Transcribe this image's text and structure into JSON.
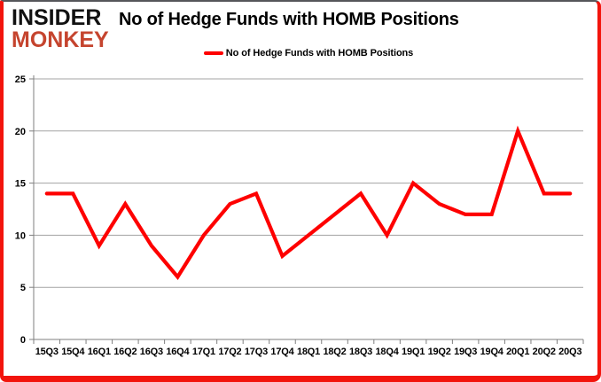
{
  "logo": {
    "line1": "INSIDER",
    "line2": "MONKEY"
  },
  "header": {
    "title": "No of Hedge Funds with HOMB Positions"
  },
  "legend": {
    "label": "No of Hedge Funds with HOMB Positions"
  },
  "colors": {
    "series_line": "#fe0000",
    "frame_red": "#f2140c",
    "logo_red": "#c5442e",
    "gridline": "#a3a3a3",
    "axis": "#7f7f7f",
    "text": "#000000"
  },
  "chart_data": {
    "type": "line",
    "title": "No of Hedge Funds with HOMB Positions",
    "categories": [
      "15Q3",
      "15Q4",
      "16Q1",
      "16Q2",
      "16Q3",
      "16Q4",
      "17Q1",
      "17Q2",
      "17Q3",
      "17Q4",
      "18Q1",
      "18Q2",
      "18Q3",
      "18Q4",
      "19Q1",
      "19Q2",
      "19Q3",
      "19Q4",
      "20Q1",
      "20Q2",
      "20Q3"
    ],
    "values": [
      14,
      14,
      9,
      13,
      9,
      6,
      10,
      13,
      14,
      8,
      10,
      12,
      14,
      10,
      15,
      13,
      12,
      12,
      20,
      14,
      14
    ],
    "series": [
      {
        "name": "No of Hedge Funds with HOMB Positions",
        "values": [
          14,
          14,
          9,
          13,
          9,
          6,
          10,
          13,
          14,
          8,
          10,
          12,
          14,
          10,
          15,
          13,
          12,
          12,
          20,
          14,
          14
        ]
      }
    ],
    "xlabel": "",
    "ylabel": "",
    "ylim": [
      0,
      25
    ],
    "y_ticks": [
      0,
      5,
      10,
      15,
      20,
      25
    ],
    "grid": "horizontal",
    "legend_position": "top-center",
    "line_color": "#fe0000"
  }
}
